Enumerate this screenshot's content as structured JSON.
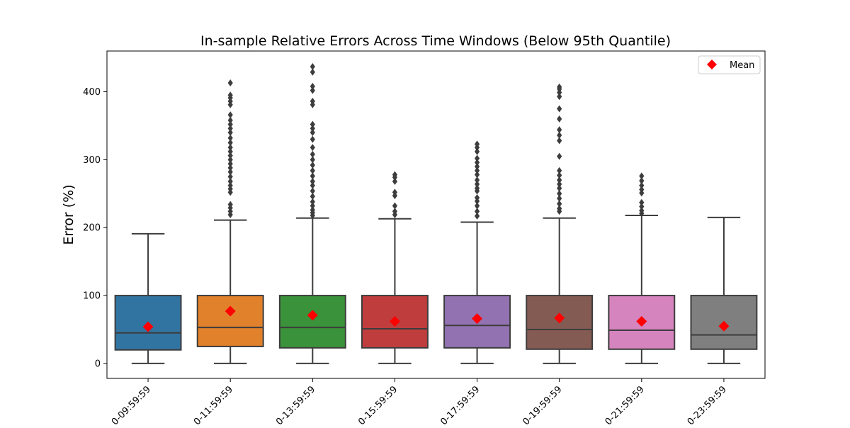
{
  "chart_data": {
    "type": "box",
    "title": "In-sample Relative Errors Across Time Windows (Below 95th Quantile)",
    "xlabel": "",
    "ylabel": "Error (%)",
    "ylim": [
      -22,
      460
    ],
    "yticks": [
      0,
      100,
      200,
      300,
      400
    ],
    "grid": false,
    "legend": {
      "placement": "top-right",
      "entries": [
        {
          "label": "Mean",
          "marker": "diamond",
          "color": "#ff0000"
        }
      ]
    },
    "categories": [
      "0-09:59:59",
      "0-11:59:59",
      "0-13:59:59",
      "0-15:59:59",
      "0-17:59:59",
      "0-19:59:59",
      "0-21:59:59",
      "0-23:59:59"
    ],
    "colors": [
      "#3274a1",
      "#e1812c",
      "#3a923a",
      "#c03d3e",
      "#9372b2",
      "#845b53",
      "#d684bd",
      "#7f7f7f"
    ],
    "boxes": [
      {
        "whisker_low": 0,
        "q1": 20,
        "median": 45,
        "q3": 100,
        "whisker_high": 191,
        "mean": 54,
        "outliers": []
      },
      {
        "whisker_low": 0,
        "q1": 25,
        "median": 53,
        "q3": 100,
        "whisker_high": 211,
        "mean": 77,
        "outliers": [
          219,
          224,
          229,
          234,
          252,
          257,
          262,
          268,
          275,
          282,
          288,
          294,
          300,
          306,
          312,
          318,
          325,
          332,
          340,
          346,
          352,
          358,
          366,
          381,
          386,
          391,
          395,
          413
        ]
      },
      {
        "whisker_low": 0,
        "q1": 23,
        "median": 53,
        "q3": 100,
        "whisker_high": 214,
        "mean": 71,
        "outliers": [
          218,
          222,
          226,
          232,
          238,
          246,
          254,
          262,
          268,
          276,
          284,
          292,
          300,
          308,
          318,
          330,
          340,
          346,
          352,
          381,
          386,
          402,
          408,
          429,
          437
        ]
      },
      {
        "whisker_low": 0,
        "q1": 23,
        "median": 51,
        "q3": 100,
        "whisker_high": 213,
        "mean": 62,
        "outliers": [
          219,
          224,
          232,
          247,
          252,
          268,
          274,
          278
        ]
      },
      {
        "whisker_low": 0,
        "q1": 23,
        "median": 56,
        "q3": 100,
        "whisker_high": 208,
        "mean": 66,
        "outliers": [
          217,
          224,
          232,
          239,
          244,
          254,
          258,
          264,
          270,
          278,
          284,
          290,
          296,
          302,
          312,
          318,
          323
        ]
      },
      {
        "whisker_low": 0,
        "q1": 21,
        "median": 50,
        "q3": 100,
        "whisker_high": 214,
        "mean": 67,
        "outliers": [
          224,
          228,
          235,
          243,
          250,
          258,
          264,
          270,
          277,
          284,
          305,
          328,
          336,
          344,
          360,
          375,
          393,
          399,
          404,
          407
        ]
      },
      {
        "whisker_low": 0,
        "q1": 21,
        "median": 49,
        "q3": 100,
        "whisker_high": 218,
        "mean": 62,
        "outliers": [
          221,
          225,
          231,
          237,
          251,
          256,
          262,
          269,
          276
        ]
      },
      {
        "whisker_low": 0,
        "q1": 21,
        "median": 42,
        "q3": 100,
        "whisker_high": 215,
        "mean": 55,
        "outliers": []
      }
    ]
  }
}
